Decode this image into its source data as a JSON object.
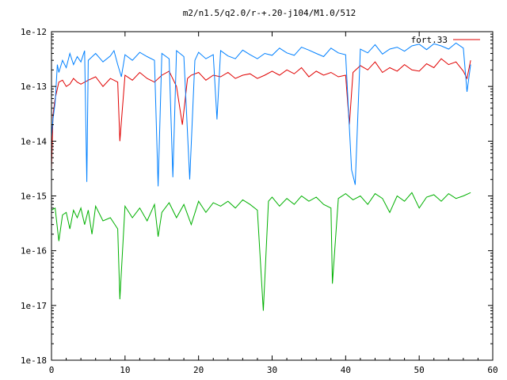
{
  "chart_data": {
    "type": "line",
    "title": "m2/n1.5/q2.0/r-+.20-j104/M1.0/512",
    "xlabel": "",
    "ylabel": "",
    "xlim": [
      0,
      60
    ],
    "ylim": [
      1e-18,
      1e-12
    ],
    "yscale": "log",
    "grid": false,
    "legend_position": "top-right",
    "x_ticks": [
      0,
      10,
      20,
      30,
      40,
      50,
      60
    ],
    "x_tick_labels": [
      "0",
      "10",
      "20",
      "30",
      "40",
      "50",
      "60"
    ],
    "y_ticks": [
      1e-18,
      1e-17,
      1e-16,
      1e-15,
      1e-14,
      1e-13,
      1e-12
    ],
    "y_tick_labels": [
      "1e-18",
      "1e-17",
      "1e-16",
      "1e-15",
      "1e-14",
      "1e-13",
      "1e-12"
    ],
    "series": [
      {
        "name": "fort.33",
        "color": "#e00000",
        "x": [
          0.0,
          0.2,
          0.5,
          1.0,
          1.5,
          2.0,
          2.5,
          3.0,
          3.5,
          4.0,
          5.0,
          6.0,
          7.0,
          8.0,
          9.0,
          9.3,
          10.0,
          11.0,
          12.0,
          13.0,
          14.0,
          15.0,
          16.0,
          17.0,
          17.8,
          18.5,
          19.0,
          20.0,
          21.0,
          22.0,
          23.0,
          24.0,
          25.0,
          26.0,
          27.0,
          28.0,
          29.0,
          30.0,
          31.0,
          32.0,
          33.0,
          34.0,
          35.0,
          36.0,
          37.0,
          38.0,
          39.0,
          40.0,
          40.5,
          41.0,
          42.0,
          43.0,
          44.0,
          45.0,
          46.0,
          47.0,
          48.0,
          49.0,
          50.0,
          51.0,
          52.0,
          53.0,
          54.0,
          55.0,
          56.0,
          56.5,
          57.0
        ],
        "y": [
          3e-15,
          3e-14,
          6e-14,
          1.2e-13,
          1.3e-13,
          1e-13,
          1.1e-13,
          1.4e-13,
          1.2e-13,
          1.1e-13,
          1.3e-13,
          1.5e-13,
          1e-13,
          1.4e-13,
          1.2e-13,
          1e-14,
          1.6e-13,
          1.3e-13,
          1.8e-13,
          1.4e-13,
          1.2e-13,
          1.6e-13,
          1.9e-13,
          1e-13,
          2e-14,
          1.4e-13,
          1.6e-13,
          1.8e-13,
          1.3e-13,
          1.6e-13,
          1.5e-13,
          1.8e-13,
          1.4e-13,
          1.6e-13,
          1.7e-13,
          1.4e-13,
          1.6e-13,
          1.9e-13,
          1.6e-13,
          2e-13,
          1.7e-13,
          2.2e-13,
          1.5e-13,
          1.9e-13,
          1.6e-13,
          1.8e-13,
          1.5e-13,
          1.6e-13,
          2e-14,
          1.8e-13,
          2.4e-13,
          2e-13,
          2.8e-13,
          1.8e-13,
          2.2e-13,
          1.9e-13,
          2.5e-13,
          2e-13,
          1.9e-13,
          2.6e-13,
          2.2e-13,
          3.2e-13,
          2.5e-13,
          2.8e-13,
          1.9e-13,
          1.4e-13,
          3e-13
        ]
      },
      {
        "name": "",
        "color": "#0080ff",
        "x": [
          0.0,
          0.2,
          0.5,
          0.8,
          1.0,
          1.5,
          2.0,
          2.5,
          3.0,
          3.5,
          4.0,
          4.5,
          4.8,
          5.0,
          6.0,
          7.0,
          8.0,
          8.5,
          9.0,
          9.5,
          10.0,
          11.0,
          12.0,
          13.0,
          14.0,
          14.5,
          15.0,
          16.0,
          16.5,
          17.0,
          18.0,
          18.8,
          19.5,
          20.0,
          21.0,
          22.0,
          22.5,
          23.0,
          24.0,
          25.0,
          26.0,
          27.0,
          28.0,
          29.0,
          30.0,
          31.0,
          32.0,
          33.0,
          34.0,
          35.0,
          36.0,
          37.0,
          38.0,
          39.0,
          40.0,
          40.8,
          41.3,
          42.0,
          43.0,
          44.0,
          45.0,
          46.0,
          47.0,
          48.0,
          49.0,
          50.0,
          51.0,
          52.0,
          53.0,
          54.0,
          55.0,
          56.0,
          56.5,
          57.0
        ],
        "y": [
          1.2e-14,
          2.5e-14,
          5e-14,
          2.5e-13,
          1.8e-13,
          3e-13,
          2.2e-13,
          4e-13,
          2.5e-13,
          3.5e-13,
          2.8e-13,
          4.5e-13,
          1.8e-15,
          3e-13,
          4e-13,
          2.8e-13,
          3.6e-13,
          4.5e-13,
          2.5e-13,
          1.5e-13,
          3.8e-13,
          3e-13,
          4.2e-13,
          3.5e-13,
          3e-13,
          1.5e-15,
          4e-13,
          3.2e-13,
          2.2e-15,
          4.5e-13,
          3.5e-13,
          2e-15,
          3e-13,
          4.2e-13,
          3.2e-13,
          3.8e-13,
          2.5e-14,
          4.5e-13,
          3.6e-13,
          3.2e-13,
          4.6e-13,
          3.8e-13,
          3.2e-13,
          4e-13,
          3.7e-13,
          5e-13,
          4.1e-13,
          3.7e-13,
          5.2e-13,
          4.6e-13,
          4e-13,
          3.5e-13,
          5e-13,
          4.1e-13,
          3.8e-13,
          3e-15,
          1.6e-15,
          4.8e-13,
          4.1e-13,
          5.8e-13,
          3.9e-13,
          4.8e-13,
          5.2e-13,
          4.4e-13,
          5.5e-13,
          5.9e-13,
          4.7e-13,
          6e-13,
          5.5e-13,
          4.8e-13,
          6.2e-13,
          5e-13,
          8e-14,
          2.5e-13
        ]
      },
      {
        "name": "",
        "color": "#00b000",
        "x": [
          0.0,
          0.5,
          1.0,
          1.5,
          2.0,
          2.5,
          3.0,
          3.5,
          4.0,
          4.5,
          5.0,
          5.5,
          6.0,
          7.0,
          8.0,
          9.0,
          9.3,
          10.0,
          11.0,
          12.0,
          13.0,
          14.0,
          14.5,
          15.0,
          16.0,
          17.0,
          18.0,
          19.0,
          20.0,
          21.0,
          22.0,
          23.0,
          24.0,
          25.0,
          26.0,
          27.0,
          28.0,
          28.8,
          29.5,
          30.0,
          31.0,
          32.0,
          33.0,
          34.0,
          35.0,
          36.0,
          37.0,
          38.0,
          38.2,
          39.0,
          40.0,
          41.0,
          42.0,
          43.0,
          44.0,
          45.0,
          46.0,
          47.0,
          48.0,
          49.0,
          50.0,
          51.0,
          52.0,
          53.0,
          54.0,
          55.0,
          56.0,
          57.0
        ],
        "y": [
          5.5e-16,
          6e-16,
          1.5e-16,
          4.5e-16,
          5e-16,
          2.5e-16,
          5.5e-16,
          4e-16,
          6e-16,
          3e-16,
          5.5e-16,
          2e-16,
          6.5e-16,
          3.5e-16,
          4e-16,
          2.5e-16,
          1.3e-17,
          6.5e-16,
          4e-16,
          6e-16,
          3.5e-16,
          7e-16,
          1.8e-16,
          5e-16,
          7.5e-16,
          4e-16,
          7e-16,
          3e-16,
          8e-16,
          5e-16,
          7.5e-16,
          6.5e-16,
          8e-16,
          6e-16,
          8.5e-16,
          7e-16,
          5.5e-16,
          8e-18,
          8e-16,
          9.5e-16,
          6.5e-16,
          9e-16,
          7e-16,
          1e-15,
          8e-16,
          9.5e-16,
          7e-16,
          6e-16,
          2.5e-17,
          9e-16,
          1.1e-15,
          8.5e-16,
          1e-15,
          7e-16,
          1.1e-15,
          9e-16,
          5e-16,
          1e-15,
          8e-16,
          1.15e-15,
          6e-16,
          9.5e-16,
          1.05e-15,
          8e-16,
          1.1e-15,
          9e-16,
          1e-15,
          1.15e-15
        ]
      }
    ]
  }
}
